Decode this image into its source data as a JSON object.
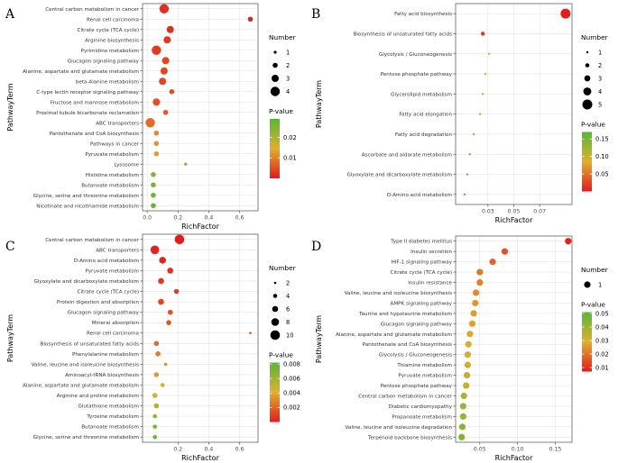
{
  "colors": {
    "low_p": "#e8191b",
    "high_p": "#56b833",
    "panel_bg": "#ffffff",
    "panel_border": "#4d4d4d",
    "grid": "#e3e3e3"
  },
  "chart_data": [
    {
      "panel_label": "A",
      "type": "scatter",
      "xlabel": "RichFactor",
      "ylabel": "PathwayTerm",
      "xlim": [
        -0.03,
        0.72
      ],
      "xticks": [
        0.0,
        0.2,
        0.4,
        0.6
      ],
      "xtick_labels": [
        "0.0",
        "0.2",
        "0.4",
        "0.6"
      ],
      "legend_number": {
        "title": "Number",
        "values": [
          1,
          2,
          3,
          4
        ],
        "labels": [
          "1",
          "2",
          "3",
          "4"
        ]
      },
      "size_range": [
        1,
        4
      ],
      "legend_color": {
        "title": "P-value",
        "range": [
          0,
          0.029
        ],
        "ticks": [
          0.01,
          0.02
        ],
        "tick_labels": [
          "0.01",
          "0.02"
        ]
      },
      "points": [
        {
          "term": "Central carbon metabolism in cancer",
          "x": 0.11,
          "number": 4,
          "p": 0.002
        },
        {
          "term": "Renal cell carcinoma",
          "x": 0.67,
          "number": 2,
          "p": 0.001
        },
        {
          "term": "Citrate cycle (TCA cycle)",
          "x": 0.15,
          "number": 3,
          "p": 0.002
        },
        {
          "term": "Arginine biosynthesis",
          "x": 0.13,
          "number": 3,
          "p": 0.003
        },
        {
          "term": "Pyrimidine metabolism",
          "x": 0.06,
          "number": 4,
          "p": 0.003
        },
        {
          "term": "Glucagon signaling pathway",
          "x": 0.12,
          "number": 3,
          "p": 0.004
        },
        {
          "term": "Alanine, aspartate and glutamate metabolism",
          "x": 0.11,
          "number": 3,
          "p": 0.004
        },
        {
          "term": "beta-Alanine metabolism",
          "x": 0.1,
          "number": 3,
          "p": 0.004
        },
        {
          "term": "C-type lectin receptor signaling pathway",
          "x": 0.16,
          "number": 2,
          "p": 0.005
        },
        {
          "term": "Fructose and mannose metabolism",
          "x": 0.06,
          "number": 3,
          "p": 0.005
        },
        {
          "term": "Proximal tubule bicarbonate reclamation",
          "x": 0.12,
          "number": 2,
          "p": 0.006
        },
        {
          "term": "ABC transporters",
          "x": 0.02,
          "number": 4,
          "p": 0.008
        },
        {
          "term": "Pantothenate and CoA biosynthesis",
          "x": 0.06,
          "number": 2,
          "p": 0.011
        },
        {
          "term": "Pathways in cancer",
          "x": 0.06,
          "number": 2,
          "p": 0.012
        },
        {
          "term": "Pyruvate metabolism",
          "x": 0.06,
          "number": 2,
          "p": 0.013
        },
        {
          "term": "Lysosome",
          "x": 0.25,
          "number": 1,
          "p": 0.024
        },
        {
          "term": "Histidine metabolism",
          "x": 0.04,
          "number": 2,
          "p": 0.025
        },
        {
          "term": "Butanoate metabolism",
          "x": 0.04,
          "number": 2,
          "p": 0.026
        },
        {
          "term": "Glycine, serine and threonine metabolism",
          "x": 0.04,
          "number": 2,
          "p": 0.027
        },
        {
          "term": "Nicotinate and nicotinamide metabolism",
          "x": 0.04,
          "number": 2,
          "p": 0.028
        }
      ]
    },
    {
      "panel_label": "B",
      "type": "scatter",
      "xlabel": "RichFactor",
      "ylabel": "PathwayTerm",
      "xlim": [
        0.005,
        0.095
      ],
      "xticks": [
        0.03,
        0.05,
        0.07
      ],
      "xtick_labels": [
        "0.03",
        "0.05",
        "0.07"
      ],
      "legend_number": {
        "title": "Number",
        "values": [
          1,
          2,
          3,
          4,
          5
        ],
        "labels": [
          "1",
          "2",
          "3",
          "4",
          "5"
        ]
      },
      "size_range": [
        1,
        5
      ],
      "legend_color": {
        "title": "P-value",
        "range": [
          0,
          0.17
        ],
        "ticks": [
          0.05,
          0.1,
          0.15
        ],
        "tick_labels": [
          "0.05",
          "0.10",
          "0.15"
        ]
      },
      "points": [
        {
          "term": "Fatty acid biosynthesis",
          "x": 0.09,
          "number": 5,
          "p": 0.001
        },
        {
          "term": "Biosynthesis of unsaturated fatty acids",
          "x": 0.026,
          "number": 2,
          "p": 0.02
        },
        {
          "term": "Glycolysis / Gluconeogenesis",
          "x": 0.031,
          "number": 1,
          "p": 0.08
        },
        {
          "term": "Pentose phosphate pathway",
          "x": 0.028,
          "number": 1,
          "p": 0.1
        },
        {
          "term": "Glycerolipid metabolism",
          "x": 0.026,
          "number": 1,
          "p": 0.11
        },
        {
          "term": "Fatty acid elongation",
          "x": 0.024,
          "number": 1,
          "p": 0.12
        },
        {
          "term": "Fatty acid degradation",
          "x": 0.019,
          "number": 1,
          "p": 0.13
        },
        {
          "term": "Ascorbate and aldarate metabolism",
          "x": 0.016,
          "number": 1,
          "p": 0.14
        },
        {
          "term": "Glyoxylate and dicarboxylate metabolism",
          "x": 0.014,
          "number": 1,
          "p": 0.15
        },
        {
          "term": "D-Amino acid metabolism",
          "x": 0.012,
          "number": 1,
          "p": 0.16
        }
      ]
    },
    {
      "panel_label": "C",
      "type": "scatter",
      "xlabel": "RichFactor",
      "ylabel": "PathwayTerm",
      "xlim": [
        -0.03,
        0.72
      ],
      "xticks": [
        0.2,
        0.4,
        0.6
      ],
      "xtick_labels": [
        "0.2",
        "0.4",
        "0.6"
      ],
      "legend_number": {
        "title": "Number",
        "values": [
          2,
          4,
          6,
          8,
          10
        ],
        "labels": [
          "2",
          "4",
          "6",
          "8",
          "10"
        ]
      },
      "size_range": [
        2,
        10
      ],
      "legend_color": {
        "title": "P-value",
        "range": [
          0,
          0.0082
        ],
        "ticks": [
          0.002,
          0.004,
          0.006,
          0.008
        ],
        "tick_labels": [
          "0.002",
          "0.004",
          "0.006",
          "0.008"
        ]
      },
      "points": [
        {
          "term": "Central carbon metabolism in cancer",
          "x": 0.21,
          "number": 10,
          "p": 0.0001
        },
        {
          "term": "ABC transporters",
          "x": 0.05,
          "number": 9,
          "p": 0.0002
        },
        {
          "term": "D-Amino acid metabolism",
          "x": 0.1,
          "number": 7,
          "p": 0.0003
        },
        {
          "term": "Pyruvate metabolism",
          "x": 0.15,
          "number": 6,
          "p": 0.0005
        },
        {
          "term": "Glyoxylate and dicarboxylate metabolism",
          "x": 0.09,
          "number": 6,
          "p": 0.0008
        },
        {
          "term": "Citrate cycle (TCA cycle)",
          "x": 0.19,
          "number": 5,
          "p": 0.001
        },
        {
          "term": "Protein digestion and absorption",
          "x": 0.09,
          "number": 6,
          "p": 0.0012
        },
        {
          "term": "Glucagon signaling pathway",
          "x": 0.15,
          "number": 5,
          "p": 0.0015
        },
        {
          "term": "Mineral absorption",
          "x": 0.14,
          "number": 5,
          "p": 0.0016
        },
        {
          "term": "Renal cell carcinoma",
          "x": 0.67,
          "number": 2,
          "p": 0.0018
        },
        {
          "term": "Biosynthesis of unsaturated fatty acids",
          "x": 0.06,
          "number": 5,
          "p": 0.0022
        },
        {
          "term": "Phenylalanine metabolism",
          "x": 0.07,
          "number": 5,
          "p": 0.0025
        },
        {
          "term": "Valine, leucine and isoleucine biosynthesis",
          "x": 0.12,
          "number": 3,
          "p": 0.0032
        },
        {
          "term": "Aminoacyl-tRNA biosynthesis",
          "x": 0.06,
          "number": 5,
          "p": 0.0035
        },
        {
          "term": "Alanine, aspartate and glutamate metabolism",
          "x": 0.1,
          "number": 4,
          "p": 0.004
        },
        {
          "term": "Arginine and proline metabolism",
          "x": 0.05,
          "number": 5,
          "p": 0.0045
        },
        {
          "term": "Glutathione metabolism",
          "x": 0.06,
          "number": 5,
          "p": 0.0055
        },
        {
          "term": "Tyrosine metabolism",
          "x": 0.05,
          "number": 4,
          "p": 0.0065
        },
        {
          "term": "Butanoate metabolism",
          "x": 0.05,
          "number": 4,
          "p": 0.0075
        },
        {
          "term": "Glycine, serine and threonine metabolism",
          "x": 0.05,
          "number": 4,
          "p": 0.008
        }
      ]
    },
    {
      "panel_label": "D",
      "type": "scatter",
      "xlabel": "RichFactor",
      "ylabel": "PathwayTerm",
      "xlim": [
        0.018,
        0.172
      ],
      "xticks": [
        0.05,
        0.1,
        0.15
      ],
      "xtick_labels": [
        "0.05",
        "0.10",
        "0.15"
      ],
      "legend_number": {
        "title": "Number",
        "values": [
          1
        ],
        "labels": [
          "1"
        ]
      },
      "size_range": [
        1,
        1
      ],
      "legend_color": {
        "title": "P-value",
        "range": [
          0.007,
          0.051
        ],
        "ticks": [
          0.01,
          0.02,
          0.03,
          0.04,
          0.05
        ],
        "tick_labels": [
          "0.01",
          "0.02",
          "0.03",
          "0.04",
          "0.05"
        ]
      },
      "points": [
        {
          "term": "Type II diabetes mellitus",
          "x": 0.167,
          "number": 1,
          "p": 0.008
        },
        {
          "term": "Insulin secretion",
          "x": 0.083,
          "number": 1,
          "p": 0.015
        },
        {
          "term": "HIF-1 signaling pathway",
          "x": 0.067,
          "number": 1,
          "p": 0.018
        },
        {
          "term": "Citrate cycle (TCA cycle)",
          "x": 0.05,
          "number": 1,
          "p": 0.021
        },
        {
          "term": "Insulin resistance",
          "x": 0.05,
          "number": 1,
          "p": 0.022
        },
        {
          "term": "Valine, leucine and isoleucine biosynthesis",
          "x": 0.045,
          "number": 1,
          "p": 0.024
        },
        {
          "term": "AMPK signaling pathway",
          "x": 0.044,
          "number": 1,
          "p": 0.025
        },
        {
          "term": "Taurine and hypotaurine metabolism",
          "x": 0.042,
          "number": 1,
          "p": 0.026
        },
        {
          "term": "Glucagon signaling pathway",
          "x": 0.04,
          "number": 1,
          "p": 0.027
        },
        {
          "term": "Alanine, aspartate and glutamate metabolism",
          "x": 0.037,
          "number": 1,
          "p": 0.028
        },
        {
          "term": "Pantothenate and CoA biosynthesis",
          "x": 0.035,
          "number": 1,
          "p": 0.03
        },
        {
          "term": "Glycolysis / Gluconeogenesis",
          "x": 0.034,
          "number": 1,
          "p": 0.031
        },
        {
          "term": "Thiamine metabolism",
          "x": 0.034,
          "number": 1,
          "p": 0.032
        },
        {
          "term": "Pyruvate metabolism",
          "x": 0.033,
          "number": 1,
          "p": 0.033
        },
        {
          "term": "Pentose phosphate pathway",
          "x": 0.032,
          "number": 1,
          "p": 0.034
        },
        {
          "term": "Central carbon metabolism in cancer",
          "x": 0.029,
          "number": 1,
          "p": 0.037
        },
        {
          "term": "Diabetic cardiomyopathy",
          "x": 0.028,
          "number": 1,
          "p": 0.039
        },
        {
          "term": "Propanoate metabolism",
          "x": 0.028,
          "number": 1,
          "p": 0.041
        },
        {
          "term": "Valine, leucine and isoleucine degradation",
          "x": 0.027,
          "number": 1,
          "p": 0.043
        },
        {
          "term": "Terpenoid backbone biosynthesis",
          "x": 0.026,
          "number": 1,
          "p": 0.045
        }
      ]
    }
  ]
}
